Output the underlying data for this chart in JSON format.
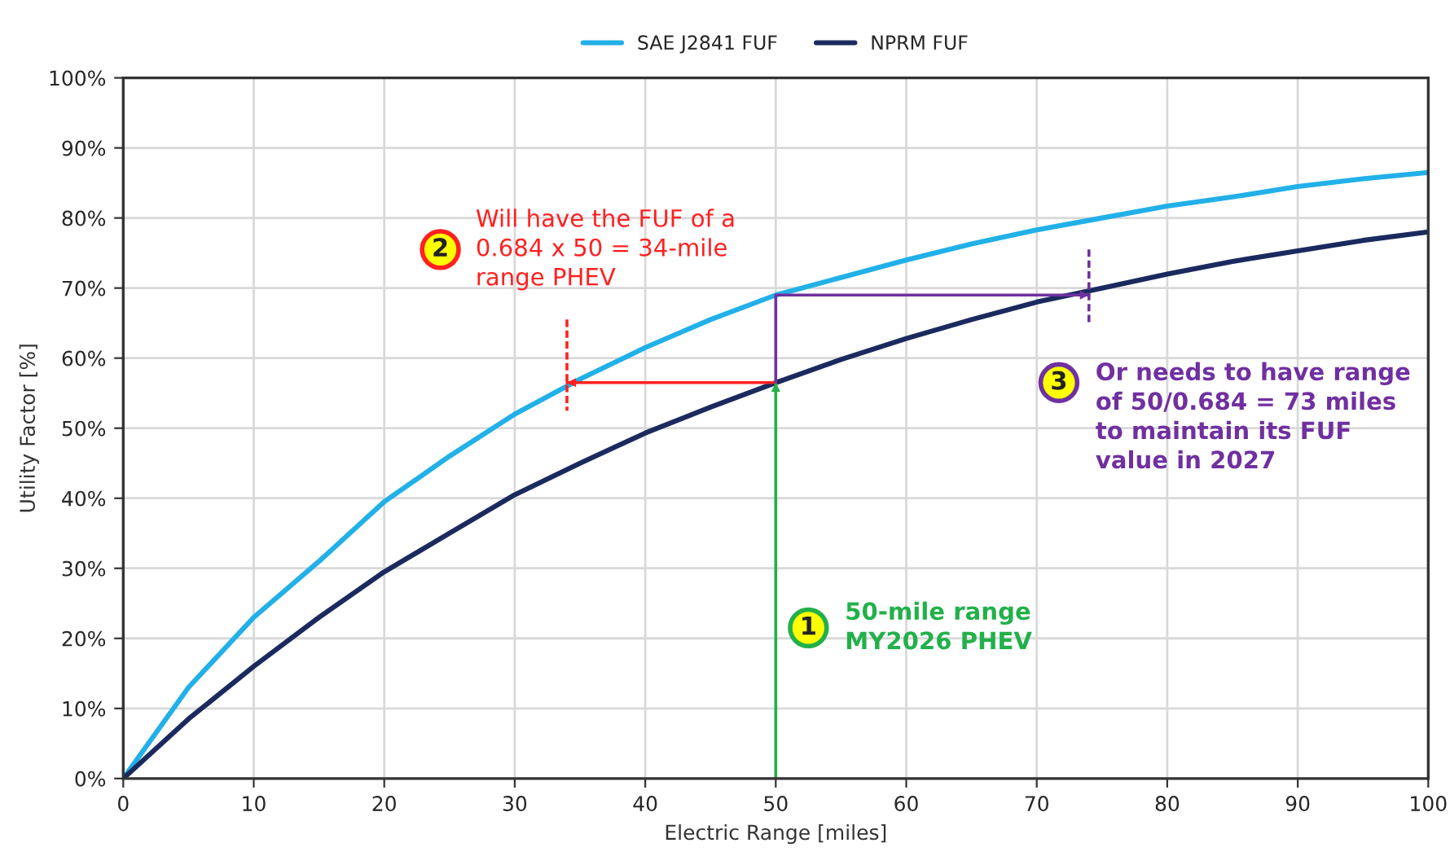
{
  "chart_data": {
    "type": "line",
    "xlabel": "Electric Range [miles]",
    "ylabel": "Utility Factor [%]",
    "x": [
      0,
      5,
      10,
      15,
      20,
      25,
      30,
      35,
      40,
      45,
      50,
      55,
      60,
      65,
      70,
      75,
      80,
      85,
      90,
      95,
      100
    ],
    "series": [
      {
        "name": "SAE J2841 FUF",
        "color": "#22b0e8",
        "values": [
          0,
          13,
          23,
          31,
          39.5,
          46,
          52,
          57,
          61.5,
          65.5,
          69,
          71.5,
          74,
          76.3,
          78.3,
          80,
          81.7,
          83,
          84.5,
          85.6,
          86.5
        ]
      },
      {
        "name": "NPRM FUF",
        "color": "#1b2a5e",
        "values": [
          0,
          8.5,
          16,
          23,
          29.5,
          35,
          40.5,
          45,
          49.3,
          53,
          56.5,
          59.8,
          62.8,
          65.5,
          68,
          70,
          72,
          73.8,
          75.3,
          76.8,
          78
        ]
      },
      {
        "color": "#22b04a",
        "x": [
          50,
          50
        ],
        "values": [
          0,
          56.5
        ]
      },
      {
        "color": "#ff2020",
        "x": [
          50,
          34
        ],
        "values": [
          56.5,
          56.5
        ]
      },
      {
        "color": "#7030a0",
        "x": [
          50,
          50,
          74
        ],
        "values": [
          56.5,
          69,
          69
        ]
      },
      {
        "color": "#ff2020",
        "x": [
          34,
          34
        ],
        "values": [
          65.5,
          52.5
        ],
        "line_style": "dashed"
      },
      {
        "color": "#7030a0",
        "x": [
          74,
          74
        ],
        "values": [
          75.5,
          65
        ],
        "line_style": "dashed"
      }
    ],
    "xlim": [
      0,
      100
    ],
    "xticks": [
      0,
      10,
      20,
      30,
      40,
      50,
      60,
      70,
      80,
      90,
      100
    ],
    "ylim": [
      0,
      100
    ],
    "yticks": [
      {
        "value": 0,
        "label": "0%"
      },
      {
        "value": 10,
        "label": "10%"
      },
      {
        "value": 20,
        "label": "20%"
      },
      {
        "value": 30,
        "label": "30%"
      },
      {
        "value": 40,
        "label": "40%"
      },
      {
        "value": 50,
        "label": "50%"
      },
      {
        "value": 60,
        "label": "60%"
      },
      {
        "value": 70,
        "label": "70%"
      },
      {
        "value": 80,
        "label": "80%"
      },
      {
        "value": 90,
        "label": "90%"
      },
      {
        "value": 100,
        "label": "100%"
      }
    ],
    "grid": true,
    "legend": "top",
    "line_style": "solid",
    "annotations": [
      "1",
      "50-mile range\nMY2026 PHEV",
      "2",
      "Will have the FUF of a\n0.684 x 50 = 34-mile\nrange PHEV",
      "3",
      "Or needs to have range\nof 50/0.684 = 73 miles\nto maintain its FUF\nvalue in 2027"
    ]
  }
}
